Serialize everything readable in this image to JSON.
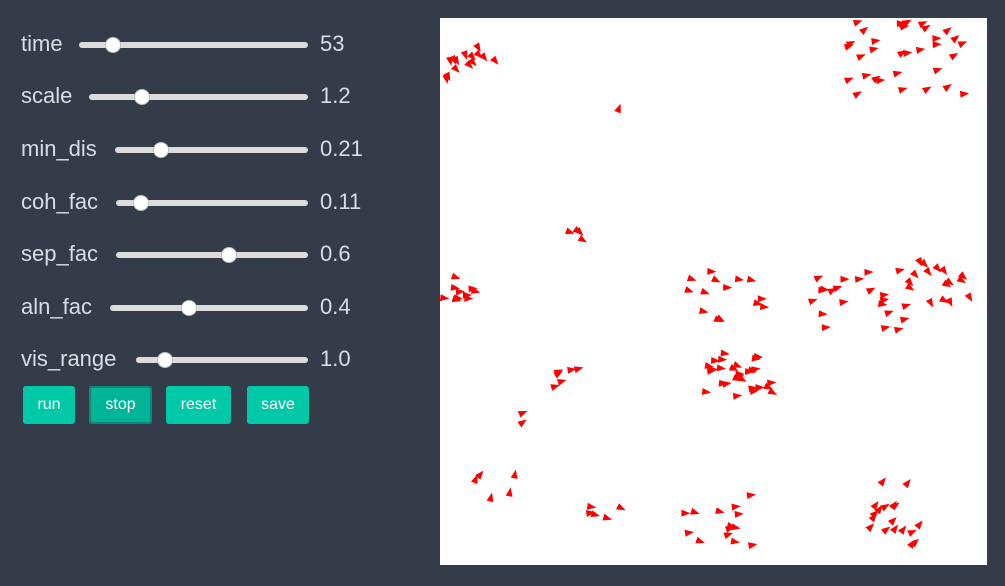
{
  "controls": {
    "time": {
      "label": "time",
      "value": "53",
      "fraction": 0.15
    },
    "scale": {
      "label": "scale",
      "value": "1.2",
      "fraction": 0.24
    },
    "min_dis": {
      "label": "min_dis",
      "value": "0.21",
      "fraction": 0.24
    },
    "coh_fac": {
      "label": "coh_fac",
      "value": "0.11",
      "fraction": 0.13
    },
    "sep_fac": {
      "label": "sep_fac",
      "value": "0.6",
      "fraction": 0.59
    },
    "aln_fac": {
      "label": "aln_fac",
      "value": "0.4",
      "fraction": 0.4
    },
    "vis_range": {
      "label": "vis_range",
      "value": "1.0",
      "fraction": 0.17
    }
  },
  "buttons": {
    "run": "run",
    "stop": "stop",
    "reset": "reset",
    "save": "save"
  },
  "colors": {
    "boid": "#ff0000",
    "accent": "#00c9a7",
    "background": "#353c49"
  }
}
